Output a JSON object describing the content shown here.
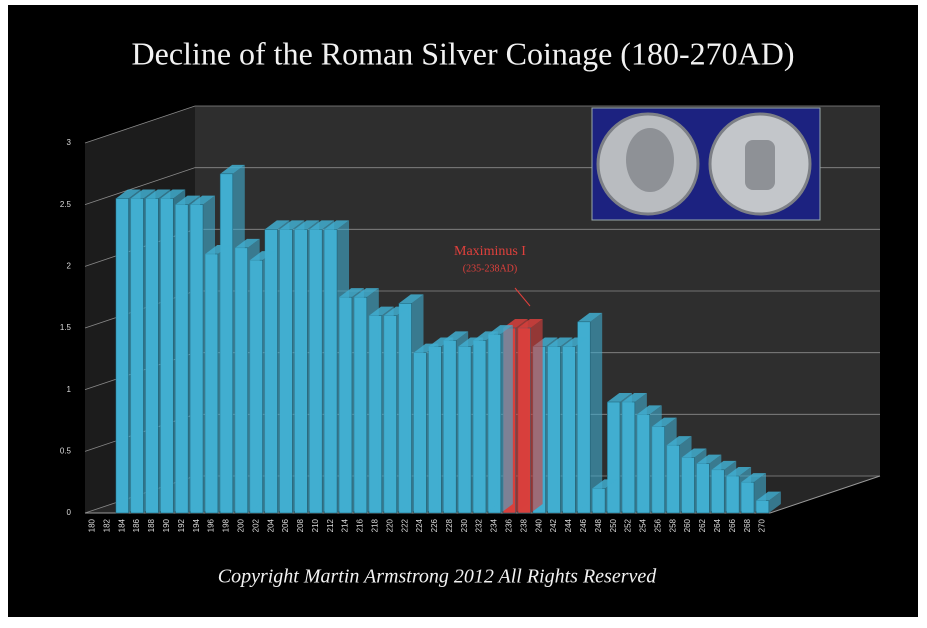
{
  "chart_data": {
    "type": "bar3d",
    "title": "Decline of the Roman Silver Coinage (180-270AD)",
    "footer": "Copyright Martin Armstrong 2012 All Rights Reserved",
    "annotation": {
      "label": "Maximinus I",
      "sublabel": "(235-238AD)"
    },
    "categories": [
      180,
      182,
      184,
      186,
      188,
      190,
      192,
      194,
      196,
      198,
      200,
      202,
      204,
      206,
      208,
      210,
      212,
      214,
      216,
      218,
      220,
      222,
      224,
      226,
      228,
      230,
      232,
      234,
      236,
      238,
      240,
      242,
      244,
      246,
      248,
      250,
      252,
      254,
      256,
      258,
      260,
      262,
      264,
      266,
      268,
      270
    ],
    "values": [
      null,
      null,
      2.55,
      2.55,
      2.55,
      2.55,
      2.5,
      2.5,
      2.1,
      2.75,
      2.15,
      2.05,
      2.3,
      2.3,
      2.3,
      2.3,
      2.3,
      1.75,
      1.75,
      1.6,
      1.6,
      1.7,
      1.3,
      1.35,
      1.4,
      1.35,
      1.4,
      1.45,
      1.5,
      1.5,
      1.35,
      1.35,
      1.35,
      1.55,
      0.2,
      0.9,
      0.9,
      0.8,
      0.7,
      0.55,
      0.45,
      0.4,
      0.35,
      0.3,
      0.25,
      0.1
    ],
    "colors": [
      "#41aed0",
      "#41aed0",
      "#41aed0",
      "#41aed0",
      "#41aed0",
      "#41aed0",
      "#41aed0",
      "#41aed0",
      "#41aed0",
      "#41aed0",
      "#41aed0",
      "#41aed0",
      "#41aed0",
      "#41aed0",
      "#41aed0",
      "#41aed0",
      "#41aed0",
      "#41aed0",
      "#41aed0",
      "#41aed0",
      "#41aed0",
      "#41aed0",
      "#41aed0",
      "#41aed0",
      "#41aed0",
      "#41aed0",
      "#41aed0",
      "#41aed0",
      "#d8403c",
      "#d8403c",
      "#41aed0",
      "#41aed0",
      "#41aed0",
      "#41aed0",
      "#41aed0",
      "#41aed0",
      "#41aed0",
      "#41aed0",
      "#41aed0",
      "#41aed0",
      "#41aed0",
      "#41aed0",
      "#41aed0",
      "#41aed0",
      "#41aed0",
      "#41aed0"
    ],
    "ylim": [
      0,
      3
    ],
    "yticks": [
      0,
      0.5,
      1,
      1.5,
      2,
      2.5,
      3
    ],
    "grid": true
  }
}
